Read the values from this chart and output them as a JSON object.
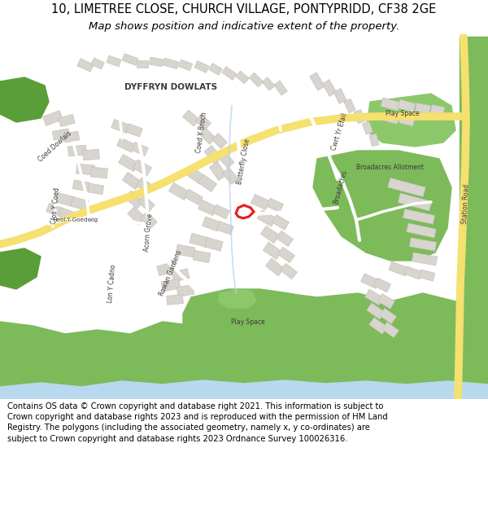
{
  "title_line1": "10, LIMETREE CLOSE, CHURCH VILLAGE, PONTYPRIDD, CF38 2GE",
  "title_line2": "Map shows position and indicative extent of the property.",
  "copyright_text": "Contains OS data © Crown copyright and database right 2021. This information is subject to Crown copyright and database rights 2023 and is reproduced with the permission of HM Land Registry. The polygons (including the associated geometry, namely x, y co-ordinates) are subject to Crown copyright and database rights 2023 Ordnance Survey 100026316.",
  "fig_width": 6.0,
  "fig_height": 6.25,
  "dpi": 100,
  "title_fontsize": 10.5,
  "subtitle_fontsize": 9.5,
  "copyright_fontsize": 7.2,
  "background_color": "#ffffff",
  "map_bg_color": "#f2ede4",
  "map_green1": "#7dba5a",
  "map_green2": "#5a9e3a",
  "map_green3": "#8cc86a",
  "map_yellow": "#f5e070",
  "map_white_road": "#ffffff",
  "map_building": "#d8d4ce",
  "map_building_edge": "#c0bcb6",
  "map_water": "#b8d8ee",
  "map_stream": "#b0d0e8",
  "plot_color": "#e82020",
  "text_color": "#3a3a3a"
}
